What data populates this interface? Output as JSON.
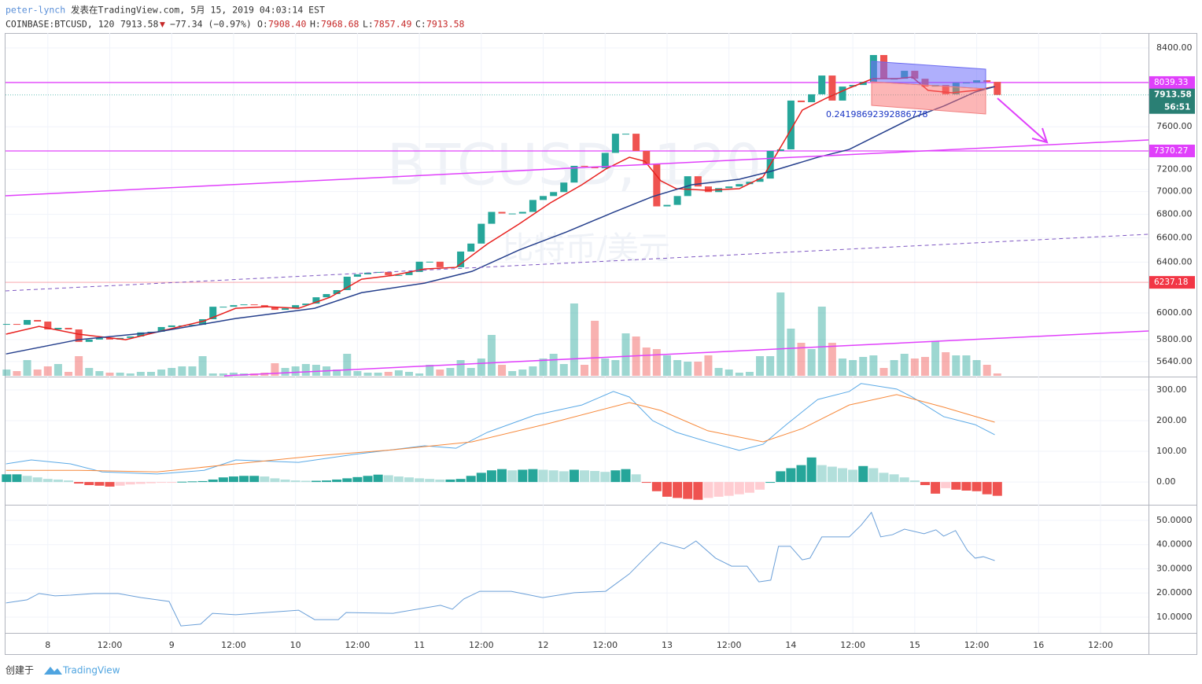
{
  "header": {
    "user": "peter-lynch",
    "published": "发表在TradingView.com, 5月 15, 2019 04:03:14 EST",
    "symbol": "COINBASE:BTCUSD, 120",
    "last": "7913.58",
    "arrow": "▼",
    "change": "−77.34 (−0.97%)",
    "ohlc": [
      {
        "label": "O:",
        "value": "7908.40"
      },
      {
        "label": "H:",
        "value": "7968.68"
      },
      {
        "label": "L:",
        "value": "7857.49"
      },
      {
        "label": "C:",
        "value": "7913.58"
      }
    ]
  },
  "footer": {
    "created": "创建于",
    "brand": "TradingView"
  },
  "chart_data": [
    {
      "type": "candlestick",
      "watermark": [
        "BTCUSD, 120",
        "比特币/美元"
      ],
      "up_color": "#26a69a",
      "down_color": "#ef5350",
      "log_scale": true,
      "grid": true,
      "x": [
        -8,
        -6,
        -4,
        -2,
        0,
        2,
        4,
        6,
        8,
        10,
        12,
        14,
        16,
        18,
        20,
        22,
        24,
        26,
        28,
        30,
        32,
        34,
        36,
        38,
        40,
        42,
        44,
        46,
        48,
        50,
        52,
        54,
        56,
        58,
        60,
        62,
        64,
        66,
        68,
        70,
        72,
        74,
        76,
        78,
        80,
        82,
        84,
        86,
        88,
        90,
        92,
        94,
        96,
        98,
        100,
        102,
        104,
        106,
        108,
        110,
        112,
        114,
        116,
        118,
        120,
        122,
        124,
        126,
        128,
        130,
        132,
        134,
        136,
        138,
        140,
        142,
        144,
        146,
        148,
        150,
        152,
        154,
        156,
        158,
        160,
        162,
        164,
        166,
        168,
        170,
        172,
        174,
        176,
        178,
        180,
        182,
        184
      ],
      "close": [
        5916,
        5910,
        5946,
        5934,
        5875,
        5887,
        5875,
        5783,
        5800,
        5812,
        5800,
        5812,
        5823,
        5853,
        5858,
        5893,
        5905,
        5905,
        5910,
        5952,
        6047,
        6047,
        6059,
        6065,
        6059,
        6047,
        6023,
        6035,
        6059,
        6071,
        6120,
        6145,
        6176,
        6282,
        6301,
        6314,
        6320,
        6295,
        6295,
        6320,
        6403,
        6403,
        6358,
        6358,
        6486,
        6552,
        6719,
        6821,
        6807,
        6807,
        6821,
        6925,
        6960,
        6995,
        7080,
        7232,
        7225,
        7210,
        7352,
        7533,
        7533,
        7370,
        7247,
        6869,
        6882,
        6960,
        7137,
        7045,
        6995,
        7030,
        7045,
        7066,
        7087,
        7116,
        7370,
        7385,
        7857,
        7841,
        7920,
        8111,
        7857,
        7998,
        8014,
        8046,
        8325,
        8078,
        8078,
        8160,
        8078,
        7998,
        8014,
        7920,
        8038,
        8038,
        8062,
        8046,
        7913.58
      ],
      "volume": [
        8,
        6,
        20,
        8,
        12,
        15,
        5,
        25,
        10,
        6,
        4,
        4,
        3,
        5,
        5,
        8,
        10,
        12,
        12,
        25,
        3,
        3,
        4,
        3,
        3,
        4,
        16,
        10,
        12,
        15,
        14,
        12,
        8,
        28,
        6,
        4,
        4,
        5,
        7,
        5,
        3,
        14,
        8,
        10,
        20,
        10,
        22,
        52,
        14,
        6,
        8,
        12,
        22,
        28,
        15,
        92,
        14,
        70,
        22,
        20,
        54,
        50,
        36,
        34,
        26,
        20,
        18,
        18,
        26,
        10,
        8,
        4,
        5,
        25,
        25,
        106,
        60,
        42,
        34,
        88,
        42,
        22,
        20,
        24,
        26,
        10,
        20,
        28,
        22,
        24,
        44,
        30,
        26,
        26,
        20,
        14,
        3
      ],
      "lines": [
        {
          "color": "#e8211f",
          "x": [
            -8.1,
            -1.7,
            5.9,
            15.1,
            21.2,
            30.3,
            36.4,
            42.5,
            48.6,
            54.7,
            60.8,
            66.9,
            73,
            79.1,
            85.2,
            91.3,
            97.4,
            103.5,
            108.1,
            112.7,
            115.7,
            118.8,
            121.8,
            127.9,
            134,
            138.6,
            143.1,
            146.2,
            150.8,
            155.3,
            159.9,
            164.5,
            167.5,
            170.6,
            175.2,
            179.7,
            183.5
          ],
          "values": [
            5840,
            5898,
            5840,
            5799,
            5856,
            5939,
            6035,
            6047,
            6035,
            6120,
            6262,
            6293,
            6344,
            6357,
            6549,
            6716,
            6900,
            7060,
            7202,
            7311,
            7274,
            7095,
            7025,
            7011,
            7025,
            7131,
            7496,
            7762,
            7880,
            7983,
            8079,
            8079,
            8095,
            7959,
            7935,
            7959,
            7998
          ]
        },
        {
          "color": "#253f8c",
          "x": [
            -8.1,
            5.9,
            21.2,
            36.4,
            51.7,
            60.8,
            73,
            82.2,
            91.3,
            100.5,
            109.6,
            117.2,
            124.8,
            134,
            140.1,
            149.2,
            155.3,
            161.4,
            167.5,
            173.6,
            179.7,
            183.5
          ],
          "values": [
            5695,
            5799,
            5856,
            5957,
            6035,
            6156,
            6231,
            6325,
            6498,
            6649,
            6817,
            6955,
            7060,
            7110,
            7181,
            7311,
            7384,
            7533,
            7685,
            7802,
            7943,
            7998
          ]
        }
      ],
      "hlines": [
        {
          "value": 8039.33,
          "color": "#e040fb"
        },
        {
          "value": 7370.27,
          "color": "#e040fb"
        },
        {
          "value": 6237.18,
          "color": "#f23645"
        }
      ],
      "countdown": "56:51",
      "annotation": "0.24198692392886778",
      "ylim": [
        5539,
        8561
      ],
      "yticks": [
        {
          "value": 8400,
          "label": "8400.00"
        },
        {
          "value": 7600,
          "label": "7600.00"
        },
        {
          "value": 7200,
          "label": "7200.00"
        },
        {
          "value": 7000,
          "label": "7000.00"
        },
        {
          "value": 6800,
          "label": "6800.00"
        },
        {
          "value": 6600,
          "label": "6600.00"
        },
        {
          "value": 6400,
          "label": "6400.00"
        },
        {
          "value": 6000,
          "label": "6000.00"
        },
        {
          "value": 5800,
          "label": "5800.00"
        },
        {
          "value": 5640,
          "label": "5640.00"
        }
      ],
      "xlim": [
        -8.2,
        213.3
      ],
      "xticks": [
        {
          "value": 0,
          "label": "8"
        },
        {
          "value": 12,
          "label": "12:00"
        },
        {
          "value": 24,
          "label": "9"
        },
        {
          "value": 36,
          "label": "12:00"
        },
        {
          "value": 48,
          "label": "10"
        },
        {
          "value": 60,
          "label": "12:00"
        },
        {
          "value": 72,
          "label": "11"
        },
        {
          "value": 84,
          "label": "12:00"
        },
        {
          "value": 96,
          "label": "12"
        },
        {
          "value": 108,
          "label": "12:00"
        },
        {
          "value": 120,
          "label": "13"
        },
        {
          "value": 132,
          "label": "12:00"
        },
        {
          "value": 144,
          "label": "14"
        },
        {
          "value": 156,
          "label": "12:00"
        },
        {
          "value": 168,
          "label": "15"
        },
        {
          "value": 180,
          "label": "12:00"
        },
        {
          "value": 192,
          "label": "16"
        },
        {
          "value": 204,
          "label": "12:00"
        }
      ]
    },
    {
      "type": "macd",
      "grid": true,
      "histogram": [
        25,
        25,
        20,
        15,
        10,
        8,
        5,
        -5,
        -10,
        -12,
        -15,
        -12,
        -8,
        -6,
        -4,
        -2,
        -1,
        1,
        2,
        3,
        8,
        15,
        18,
        20,
        20,
        18,
        12,
        8,
        5,
        4,
        4,
        5,
        8,
        12,
        16,
        20,
        24,
        22,
        18,
        15,
        12,
        10,
        8,
        8,
        10,
        20,
        30,
        38,
        42,
        38,
        40,
        42,
        40,
        38,
        35,
        40,
        38,
        36,
        33,
        38,
        42,
        25,
        -2,
        -30,
        -48,
        -52,
        -55,
        -58,
        -52,
        -48,
        -45,
        -40,
        -35,
        -25,
        0,
        35,
        45,
        55,
        80,
        55,
        50,
        45,
        40,
        52,
        45,
        30,
        25,
        15,
        5,
        -10,
        -38,
        -20,
        -25,
        -28,
        -30,
        -40,
        -45
      ],
      "series": [
        {
          "color": "#5aa9e6",
          "x": [
            -8.1,
            -3.2,
            4.4,
            10.5,
            21.2,
            30.3,
            36.4,
            48.6,
            59.3,
            73,
            79.1,
            85.2,
            94.4,
            103.5,
            109.6,
            112.7,
            117.2,
            121.8,
            127.9,
            134,
            138.6,
            143.1,
            149.2,
            155.3,
            157.6,
            164.5,
            167.5,
            173.6,
            179.7,
            183.5
          ],
          "values": [
            59,
            72,
            59,
            33,
            26,
            38,
            72,
            64,
            90,
            118,
            110,
            162,
            218,
            251,
            295,
            277,
            200,
            162,
            131,
            103,
            123,
            187,
            269,
            295,
            321,
            303,
            277,
            213,
            187,
            154
          ]
        },
        {
          "color": "#f7893b",
          "x": [
            -8.1,
            6,
            21.2,
            36.4,
            51.7,
            66.9,
            82.2,
            97.4,
            112.7,
            118.8,
            127.9,
            138.6,
            146.2,
            155.3,
            164.5,
            173.6,
            183.5
          ],
          "values": [
            38,
            38,
            33,
            59,
            85,
            105,
            131,
            192,
            259,
            233,
            167,
            131,
            174,
            251,
            285,
            244,
            195
          ]
        }
      ],
      "ylim": [
        -69,
        341
      ],
      "yticks": [
        {
          "value": 300,
          "label": "300.00"
        },
        {
          "value": 200,
          "label": "200.00"
        },
        {
          "value": 100,
          "label": "100.00"
        },
        {
          "value": 0,
          "label": "0.00"
        }
      ]
    },
    {
      "type": "line",
      "grid": true,
      "series": [
        {
          "color": "#6a9fd8",
          "x": [
            -8.1,
            -4,
            -1.7,
            1.4,
            4.4,
            9,
            13.6,
            18.1,
            23.5,
            25.8,
            29.6,
            31.9,
            36.4,
            48.6,
            51.7,
            56.3,
            57.8,
            66.9,
            76.1,
            78.4,
            80.6,
            83.7,
            89.8,
            95.9,
            102,
            108.1,
            112.7,
            115.7,
            118.8,
            123.3,
            125.6,
            129.4,
            132.5,
            135.5,
            137.8,
            140.1,
            141.6,
            143.9,
            146.2,
            147.7,
            150,
            155.3,
            157.6,
            159.6,
            161.4,
            163.7,
            166,
            169.8,
            172.1,
            173.6,
            175.9,
            178.2,
            179.7,
            181.3,
            183.5
          ],
          "values": [
            15.9,
            17.2,
            19.8,
            18.8,
            19.1,
            19.8,
            19.8,
            18.1,
            16.5,
            6.4,
            7.1,
            11.6,
            11,
            12.9,
            9,
            9,
            11.9,
            11.6,
            14.9,
            13.3,
            17.5,
            20.7,
            20.7,
            18.1,
            20.1,
            20.7,
            27.9,
            34.4,
            40.9,
            38.3,
            41.5,
            34.4,
            31.1,
            31.1,
            24.6,
            25.3,
            39.3,
            39.3,
            33.7,
            34.4,
            43.2,
            43.2,
            48,
            53.3,
            43.2,
            44.1,
            46.4,
            44.5,
            46.1,
            43.5,
            45.8,
            37.6,
            34.4,
            35,
            33.4
          ]
        }
      ],
      "ylim": [
        3.5,
        55.5
      ],
      "yticks": [
        {
          "value": 50,
          "label": "50.0000"
        },
        {
          "value": 40,
          "label": "40.0000"
        },
        {
          "value": 30,
          "label": "30.0000"
        },
        {
          "value": 20,
          "label": "20.0000"
        },
        {
          "value": 10,
          "label": "10.0000"
        }
      ]
    }
  ]
}
